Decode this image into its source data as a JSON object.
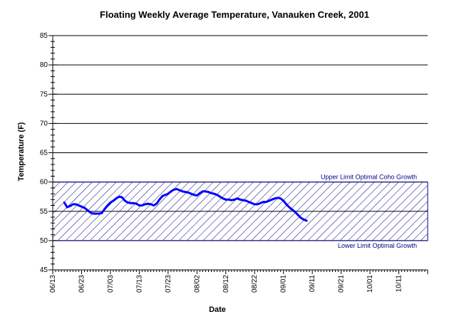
{
  "chart_data": {
    "type": "line",
    "title": "Floating Weekly Average Temperature, Vanauken Creek, 2001",
    "xlabel": "Date",
    "ylabel": "Temperature (F)",
    "ylim": [
      45,
      85
    ],
    "yticks": [
      45,
      50,
      55,
      60,
      65,
      70,
      75,
      80,
      85
    ],
    "xlim": [
      "06/13",
      "10/21"
    ],
    "xticks": [
      "06/13",
      "06/23",
      "07/03",
      "07/13",
      "07/23",
      "08/02",
      "08/12",
      "08/22",
      "09/01",
      "09/11",
      "09/21",
      "10/01",
      "10/11"
    ],
    "grid": "horizontal",
    "band": {
      "low": 50,
      "high": 60,
      "fill": "hatched",
      "upper_label": "Upper Limit Optimal Coho Growth",
      "lower_label": "Lower Limit Optimal Growth"
    },
    "series": [
      {
        "color": "#0000ff",
        "x": [
          "06/17",
          "06/18",
          "06/19",
          "06/20",
          "06/21",
          "06/22",
          "06/23",
          "06/24",
          "06/25",
          "06/26",
          "06/27",
          "06/28",
          "06/29",
          "06/30",
          "07/01",
          "07/02",
          "07/03",
          "07/04",
          "07/05",
          "07/06",
          "07/07",
          "07/08",
          "07/09",
          "07/10",
          "07/11",
          "07/12",
          "07/13",
          "07/14",
          "07/15",
          "07/16",
          "07/17",
          "07/18",
          "07/19",
          "07/20",
          "07/21",
          "07/22",
          "07/23",
          "07/24",
          "07/25",
          "07/26",
          "07/27",
          "07/28",
          "07/29",
          "07/30",
          "07/31",
          "08/01",
          "08/02",
          "08/03",
          "08/04",
          "08/05",
          "08/06",
          "08/07",
          "08/08",
          "08/09",
          "08/10",
          "08/11",
          "08/12",
          "08/13",
          "08/14",
          "08/15",
          "08/16",
          "08/17",
          "08/18",
          "08/19",
          "08/20",
          "08/21",
          "08/22",
          "08/23",
          "08/24",
          "08/25",
          "08/26",
          "08/27",
          "08/28",
          "08/29",
          "08/30",
          "08/31",
          "09/01",
          "09/02",
          "09/03",
          "09/04",
          "09/05",
          "09/06",
          "09/07",
          "09/08",
          "09/09"
        ],
        "y": [
          56.5,
          55.7,
          55.9,
          56.2,
          56.2,
          56.0,
          55.8,
          55.6,
          55.2,
          54.8,
          54.6,
          54.6,
          54.6,
          54.7,
          55.4,
          56.0,
          56.5,
          56.8,
          57.2,
          57.5,
          57.4,
          56.8,
          56.5,
          56.4,
          56.4,
          56.3,
          56.0,
          56.0,
          56.2,
          56.3,
          56.2,
          56.0,
          56.3,
          57.0,
          57.6,
          57.8,
          58.0,
          58.4,
          58.7,
          58.8,
          58.6,
          58.4,
          58.3,
          58.2,
          58.0,
          57.8,
          57.7,
          58.1,
          58.4,
          58.4,
          58.3,
          58.1,
          58.0,
          57.8,
          57.5,
          57.2,
          57.0,
          57.0,
          56.9,
          57.0,
          57.2,
          57.0,
          56.9,
          56.8,
          56.6,
          56.4,
          56.2,
          56.2,
          56.4,
          56.6,
          56.6,
          56.8,
          57.0,
          57.2,
          57.3,
          57.2,
          56.8,
          56.2,
          55.7,
          55.3,
          54.9,
          54.4,
          53.9,
          53.6,
          53.4
        ]
      }
    ]
  }
}
